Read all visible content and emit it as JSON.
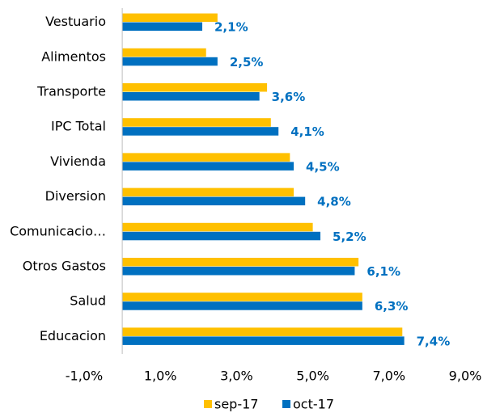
{
  "chart_data": {
    "type": "barh",
    "categories": [
      "Vestuario",
      "Alimentos",
      "Transporte",
      "IPC Total",
      "Vivienda",
      "Diversion",
      "Comunicacio…",
      "Otros Gastos",
      "Salud",
      "Educacion"
    ],
    "series": [
      {
        "name": "sep-17",
        "color": "#ffc000",
        "values": [
          2.5,
          2.2,
          3.8,
          3.9,
          4.4,
          4.5,
          5.0,
          6.2,
          6.3,
          7.35
        ]
      },
      {
        "name": "oct-17",
        "color": "#0070c0",
        "values": [
          2.1,
          2.5,
          3.6,
          4.1,
          4.5,
          4.8,
          5.2,
          6.1,
          6.3,
          7.4
        ],
        "value_labels": [
          "2,1%",
          "2,5%",
          "3,6%",
          "4,1%",
          "4,5%",
          "4,8%",
          "5,2%",
          "6,1%",
          "6,3%",
          "7,4%"
        ]
      }
    ],
    "xlim": [
      -1,
      9
    ],
    "xticks": [
      {
        "value": -1,
        "label": "-1,0%"
      },
      {
        "value": 1,
        "label": "1,0%"
      },
      {
        "value": 3,
        "label": "3,0%"
      },
      {
        "value": 5,
        "label": "5,0%"
      },
      {
        "value": 7,
        "label": "7,0%"
      },
      {
        "value": 9,
        "label": "9,0%"
      }
    ],
    "legend": "bottom"
  }
}
